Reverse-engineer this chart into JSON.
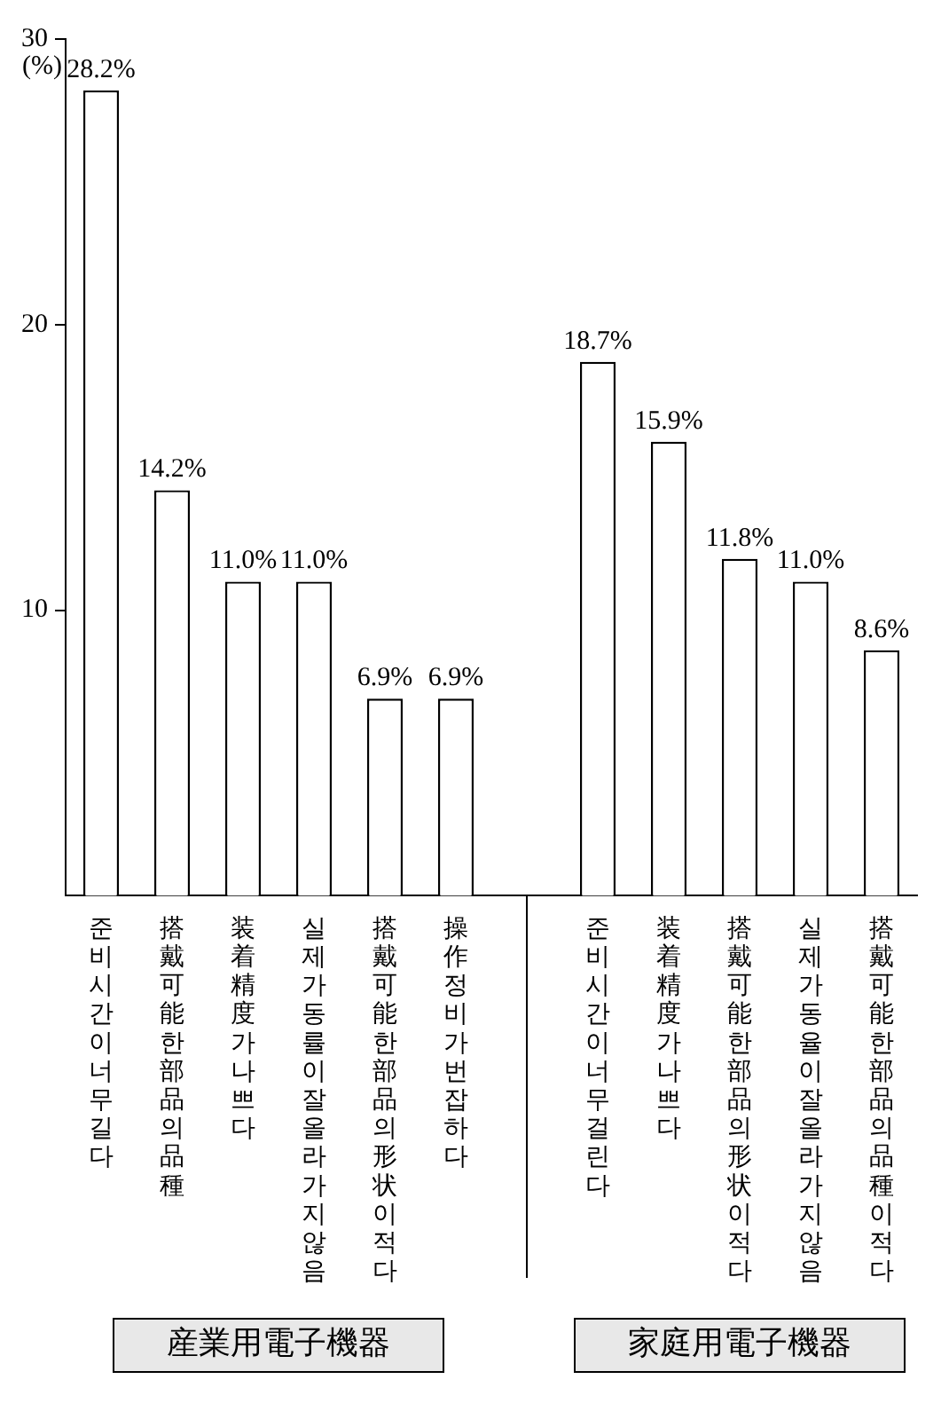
{
  "chart_data": {
    "type": "bar",
    "ylabel": "(%)",
    "categories": [
      "준비시간이너무길다",
      "搭戴可能한部品의品種",
      "装着精度가나쁘다",
      "실제가동률이잘올라가지않음",
      "搭戴可能한部品의形状이적다",
      "操作정비가번잡하다",
      null,
      "준비시간이너무걸린다",
      "装着精度가나쁘다",
      "搭戴可能한部品의形状이적다",
      "실제가동율이잘올라가지않음",
      "搭戴可能한部品의品種이적다"
    ],
    "values": [
      28.2,
      14.2,
      11.0,
      11.0,
      6.9,
      6.9,
      null,
      18.7,
      15.9,
      11.8,
      11.0,
      8.6
    ],
    "value_labels": [
      "28.2%",
      "14.2%",
      "11.0%",
      "11.0%",
      "6.9%",
      "6.9%",
      null,
      "18.7%",
      "15.9%",
      "11.8%",
      "11.0%",
      "8.6%"
    ],
    "color": "#ffffff",
    "ylim": [
      0,
      30
    ],
    "yticks": [
      10,
      20,
      30
    ],
    "grid": false,
    "legend": false,
    "annotations": [
      "産業用電子機器",
      "家庭用電子機器"
    ]
  }
}
